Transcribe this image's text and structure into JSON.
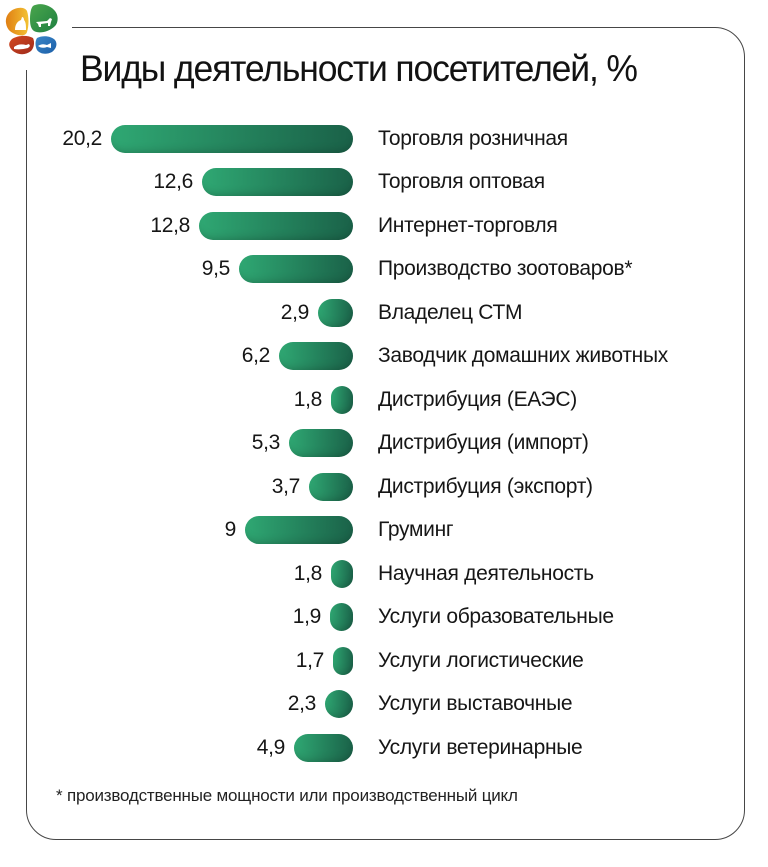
{
  "logo": {
    "name": "pet-industry-exhibition-logo",
    "description": "pinwheel of four petals with white animal silhouettes",
    "petal_colors": {
      "left": "#E8971F",
      "top_right": "#2E9447",
      "bottom_left": "#BE3A22",
      "bottom_right": "#2670B5"
    }
  },
  "chart_data": {
    "type": "bar",
    "orientation": "horizontal",
    "alignment": "bars right-aligned to a common edge, value labels left of each bar",
    "title": "Виды деятельности посетителей, %",
    "categories": [
      "Торговля розничная",
      "Торговля оптовая",
      "Интернет-торговля",
      "Производство зоотоваров*",
      "Владелец СТМ",
      "Заводчик домашних животных",
      "Дистрибуция (ЕАЭС)",
      "Дистрибуция (импорт)",
      "Дистрибуция (экспорт)",
      "Груминг",
      "Научная деятельность",
      "Услуги образовательные",
      "Услуги логистические",
      "Услуги выставочные",
      "Услуги ветеринарные"
    ],
    "values": [
      20.2,
      12.6,
      12.8,
      9.5,
      2.9,
      6.2,
      1.8,
      5.3,
      3.7,
      9,
      1.8,
      1.9,
      1.7,
      2.3,
      4.9
    ],
    "rows": [
      {
        "value_label": "20,2",
        "value": 20.2,
        "label": "Торговля розничная"
      },
      {
        "value_label": "12,6",
        "value": 12.6,
        "label": "Торговля оптовая"
      },
      {
        "value_label": "12,8",
        "value": 12.8,
        "label": "Интернет-торговля"
      },
      {
        "value_label": "9,5",
        "value": 9.5,
        "label": "Производство зоотоваров*"
      },
      {
        "value_label": "2,9",
        "value": 2.9,
        "label": "Владелец СТМ"
      },
      {
        "value_label": "6,2",
        "value": 6.2,
        "label": "Заводчик домашних животных"
      },
      {
        "value_label": "1,8",
        "value": 1.8,
        "label": "Дистрибуция (ЕАЭС)"
      },
      {
        "value_label": "5,3",
        "value": 5.3,
        "label": "Дистрибуция (импорт)"
      },
      {
        "value_label": "3,7",
        "value": 3.7,
        "label": "Дистрибуция (экспорт)"
      },
      {
        "value_label": "9",
        "value": 9,
        "label": "Груминг"
      },
      {
        "value_label": "1,8",
        "value": 1.8,
        "label": "Научная деятельность"
      },
      {
        "value_label": "1,9",
        "value": 1.9,
        "label": "Услуги образовательные"
      },
      {
        "value_label": "1,7",
        "value": 1.7,
        "label": "Услуги логистические"
      },
      {
        "value_label": "2,3",
        "value": 2.3,
        "label": "Услуги выставочные"
      },
      {
        "value_label": "4,9",
        "value": 4.9,
        "label": "Услуги ветеринарные"
      }
    ],
    "footnote": "* производственные мощности или производственный цикл",
    "bar_color_start": "#2FA873",
    "bar_color_end": "#1A6148",
    "xlim": [
      0,
      20.2
    ],
    "grid": false,
    "legend": false
  }
}
